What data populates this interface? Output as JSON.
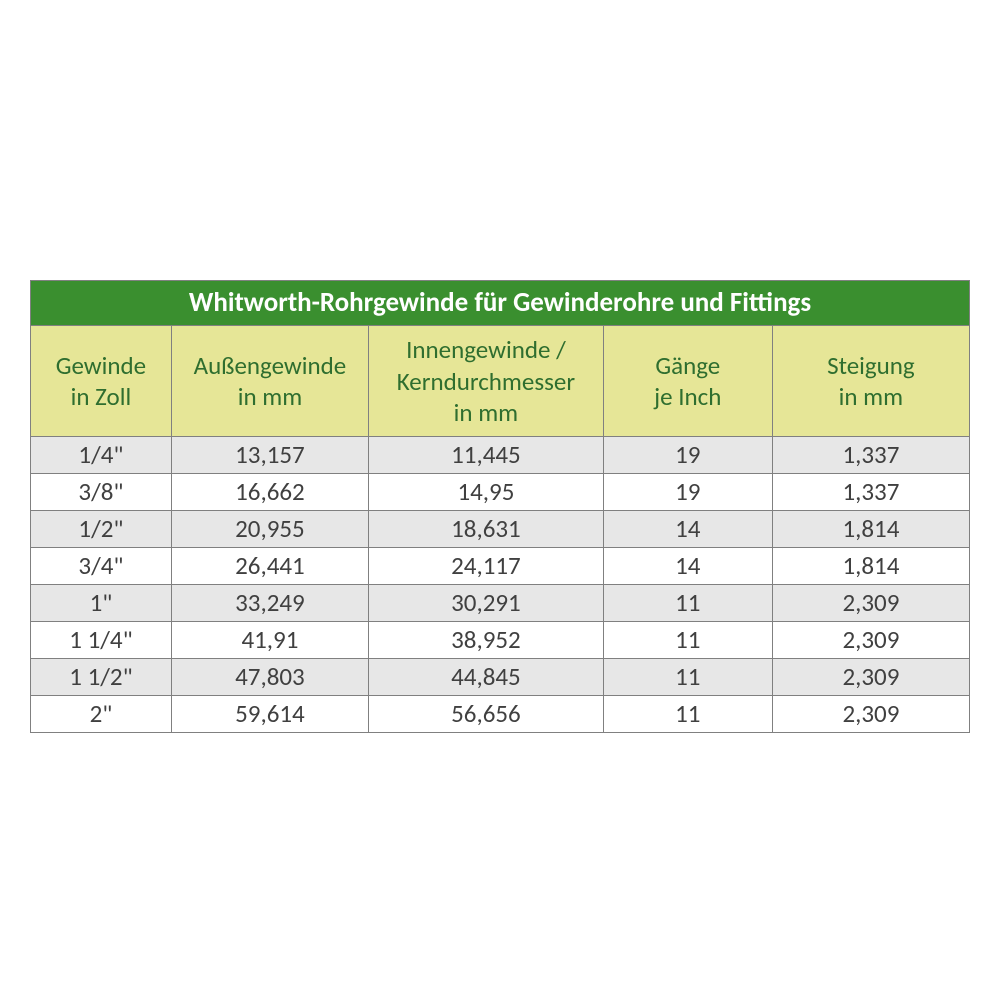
{
  "table": {
    "type": "table",
    "title": "Whitworth-Rohrgewinde für Gewinderohre und Fittings",
    "title_bg": "#3a8f2f",
    "title_color": "#ffffff",
    "title_fontsize": 27,
    "header_bg": "#e6e697",
    "header_color": "#2f6e2f",
    "header_fontsize": 25,
    "body_fontsize": 25,
    "body_text_color": "#404040",
    "row_odd_bg": "#e7e7e7",
    "row_even_bg": "#ffffff",
    "border_color": "#808080",
    "font_family": "Calibri, Arial, sans-serif",
    "column_widths_pct": [
      15,
      21,
      25,
      18,
      21
    ],
    "columns": [
      {
        "line1": "Gewinde",
        "line2": "in Zoll"
      },
      {
        "line1": "Außengewinde",
        "line2": "in mm"
      },
      {
        "line1": "Innengewinde /",
        "line2": "Kerndurchmesser",
        "line3": "in mm"
      },
      {
        "line1": "Gänge",
        "line2": "je Inch"
      },
      {
        "line1": "Steigung",
        "line2": "in mm"
      }
    ],
    "rows": [
      [
        "1/4\"",
        "13,157",
        "11,445",
        "19",
        "1,337"
      ],
      [
        "3/8\"",
        "16,662",
        "14,95",
        "19",
        "1,337"
      ],
      [
        "1/2\"",
        "20,955",
        "18,631",
        "14",
        "1,814"
      ],
      [
        "3/4\"",
        "26,441",
        "24,117",
        "14",
        "1,814"
      ],
      [
        "1\"",
        "33,249",
        "30,291",
        "11",
        "2,309"
      ],
      [
        "1 1/4\"",
        "41,91",
        "38,952",
        "11",
        "2,309"
      ],
      [
        "1 1/2\"",
        "47,803",
        "44,845",
        "11",
        "2,309"
      ],
      [
        "2\"",
        "59,614",
        "56,656",
        "11",
        "2,309"
      ]
    ]
  }
}
